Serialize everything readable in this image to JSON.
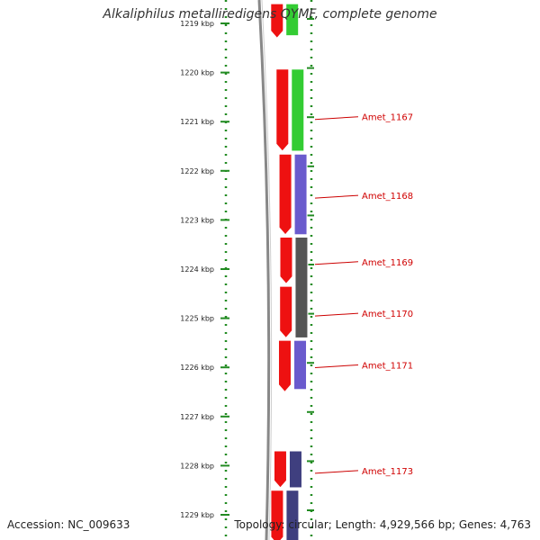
{
  "title": "Alkaliphilus metalliredigens QYMF, complete genome",
  "footer": {
    "accession": "Accession: NC_009633",
    "topology": "Topology: circular; Length: 4,929,566 bp; Genes: 4,763"
  },
  "colors": {
    "axis_dots": "#228b22",
    "backbone": "#888888",
    "strand_red": "#ee1111",
    "green": "#33cc33",
    "blue": "#6a5acd",
    "gray": "#555555",
    "darkblue": "#3f3f7f",
    "label_red": "#cc0000"
  },
  "ticks": [
    {
      "kbp": 1219,
      "label": "1219 kbp"
    },
    {
      "kbp": 1220,
      "label": "1220 kbp"
    },
    {
      "kbp": 1221,
      "label": "1221 kbp"
    },
    {
      "kbp": 1222,
      "label": "1222 kbp"
    },
    {
      "kbp": 1223,
      "label": "1223 kbp"
    },
    {
      "kbp": 1224,
      "label": "1224 kbp"
    },
    {
      "kbp": 1225,
      "label": "1225 kbp"
    },
    {
      "kbp": 1226,
      "label": "1226 kbp"
    },
    {
      "kbp": 1227,
      "label": "1227 kbp"
    },
    {
      "kbp": 1228,
      "label": "1228 kbp"
    },
    {
      "kbp": 1229,
      "label": "1229 kbp"
    }
  ],
  "red_track": [
    {
      "start": 1218.6,
      "end": 1219.3
    },
    {
      "start": 1219.93,
      "end": 1221.6
    },
    {
      "start": 1221.66,
      "end": 1223.3
    },
    {
      "start": 1223.35,
      "end": 1224.3
    },
    {
      "start": 1224.35,
      "end": 1225.4
    },
    {
      "start": 1225.45,
      "end": 1226.5
    },
    {
      "start": 1227.7,
      "end": 1228.45
    },
    {
      "start": 1228.5,
      "end": 1229.6
    }
  ],
  "feature_track": [
    {
      "start": 1218.6,
      "end": 1219.25,
      "color": "green"
    },
    {
      "start": 1219.93,
      "end": 1221.6,
      "color": "green"
    },
    {
      "start": 1221.66,
      "end": 1223.3,
      "color": "blue"
    },
    {
      "start": 1223.35,
      "end": 1225.4,
      "color": "gray"
    },
    {
      "start": 1225.45,
      "end": 1226.45,
      "color": "blue"
    },
    {
      "start": 1227.7,
      "end": 1228.45,
      "color": "darkblue"
    },
    {
      "start": 1228.5,
      "end": 1229.6,
      "color": "darkblue"
    }
  ],
  "gene_labels": [
    {
      "name": "Amet_1167",
      "at": 1220.9
    },
    {
      "name": "Amet_1168",
      "at": 1222.5
    },
    {
      "name": "Amet_1169",
      "at": 1223.85
    },
    {
      "name": "Amet_1170",
      "at": 1224.9
    },
    {
      "name": "Amet_1171",
      "at": 1225.95
    },
    {
      "name": "Amet_1173",
      "at": 1228.1
    }
  ]
}
